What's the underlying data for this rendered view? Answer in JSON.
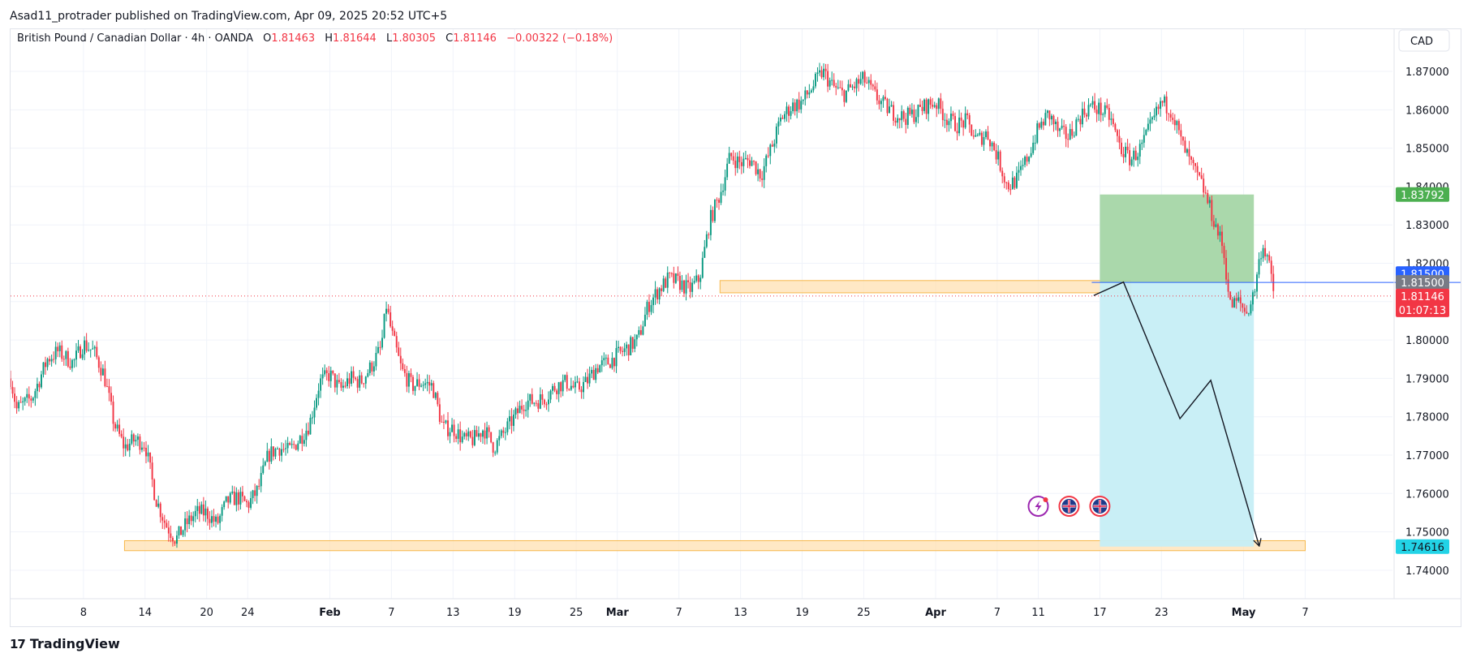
{
  "header": {
    "text": "Asad11_protrader published on TradingView.com, Apr 09, 2025 20:52 UTC+5"
  },
  "footer": {
    "brand": "TradingView",
    "logo_icon": "tradingview-logo-icon"
  },
  "legend": {
    "symbol": "British Pound / Canadian Dollar · 4h · OANDA",
    "o_label": "O",
    "open": "1.81463",
    "h_label": "H",
    "high": "1.81644",
    "l_label": "L",
    "low": "1.80305",
    "c_label": "C",
    "close": "1.81146",
    "change": "−0.00322 (−0.18%)"
  },
  "colors": {
    "up": "#089981",
    "down": "#f23645",
    "grid": "#f0f3fa",
    "text": "#131722",
    "zone_fill": "#ffe0b2",
    "zone_border": "#f7b84b",
    "target_fill": "#a5d6a7",
    "stop_fill": "#c6eef5",
    "entry_blue": "#2962ff",
    "entry_gray": "#787b86",
    "target_label": "#4caf50",
    "stop_label": "#22d3e6",
    "price_red": "#f23645"
  },
  "chart_data": {
    "type": "candlestick",
    "instrument": "GBPCAD",
    "timeframe": "4h",
    "currency": "CAD",
    "ylim": [
      1.733,
      1.881
    ],
    "y_ticks": [
      "1.87000",
      "1.86000",
      "1.85000",
      "1.84000",
      "1.83000",
      "1.82000",
      "1.81000",
      "1.80000",
      "1.79000",
      "1.78000",
      "1.77000",
      "1.76000",
      "1.75000",
      "1.74000"
    ],
    "x_ticks": [
      "8",
      "14",
      "20",
      "24",
      "Feb",
      "7",
      "13",
      "19",
      "25",
      "Mar",
      "7",
      "13",
      "19",
      "25",
      "Apr",
      "7",
      "11",
      "17",
      "23",
      "May",
      "7"
    ],
    "x_tick_days": [
      8,
      14,
      20,
      24,
      32,
      38,
      44,
      50,
      56,
      60,
      66,
      72,
      78,
      84,
      91,
      97,
      101,
      107,
      113,
      121,
      127
    ],
    "bold_ticks": [
      "Feb",
      "Mar",
      "Apr",
      "May"
    ],
    "x_range_days": [
      0.9,
      135.5
    ],
    "price_path": [
      [
        0.9,
        1.79
      ],
      [
        1.5,
        1.782
      ],
      [
        3,
        1.785
      ],
      [
        4.5,
        1.795
      ],
      [
        5.5,
        1.797
      ],
      [
        7,
        1.794
      ],
      [
        8,
        1.799
      ],
      [
        9,
        1.797
      ],
      [
        10,
        1.791
      ],
      [
        11,
        1.778
      ],
      [
        12,
        1.772
      ],
      [
        13,
        1.774
      ],
      [
        14,
        1.773
      ],
      [
        15,
        1.759
      ],
      [
        16,
        1.752
      ],
      [
        17,
        1.748
      ],
      [
        18,
        1.752
      ],
      [
        19,
        1.755
      ],
      [
        20,
        1.755
      ],
      [
        21,
        1.752
      ],
      [
        22,
        1.758
      ],
      [
        23,
        1.759
      ],
      [
        24,
        1.757
      ],
      [
        25,
        1.761
      ],
      [
        26,
        1.77
      ],
      [
        27,
        1.772
      ],
      [
        28,
        1.771
      ],
      [
        29,
        1.774
      ],
      [
        30,
        1.778
      ],
      [
        31,
        1.789
      ],
      [
        32,
        1.791
      ],
      [
        33,
        1.787
      ],
      [
        34,
        1.79
      ],
      [
        35,
        1.789
      ],
      [
        36,
        1.793
      ],
      [
        37,
        1.798
      ],
      [
        37.5,
        1.809
      ],
      [
        38,
        1.802
      ],
      [
        39,
        1.792
      ],
      [
        40,
        1.788
      ],
      [
        41,
        1.789
      ],
      [
        42,
        1.788
      ],
      [
        43,
        1.777
      ],
      [
        44,
        1.777
      ],
      [
        45,
        1.774
      ],
      [
        46,
        1.774
      ],
      [
        47,
        1.777
      ],
      [
        48,
        1.772
      ],
      [
        49,
        1.776
      ],
      [
        50,
        1.78
      ],
      [
        51,
        1.784
      ],
      [
        52,
        1.784
      ],
      [
        53,
        1.785
      ],
      [
        54,
        1.788
      ],
      [
        55,
        1.789
      ],
      [
        56,
        1.787
      ],
      [
        57,
        1.789
      ],
      [
        58,
        1.793
      ],
      [
        59,
        1.794
      ],
      [
        60,
        1.796
      ],
      [
        61,
        1.798
      ],
      [
        62,
        1.8
      ],
      [
        63,
        1.809
      ],
      [
        64,
        1.813
      ],
      [
        65,
        1.816
      ],
      [
        66,
        1.815
      ],
      [
        67,
        1.813
      ],
      [
        68,
        1.816
      ],
      [
        69,
        1.831
      ],
      [
        70,
        1.838
      ],
      [
        71,
        1.848
      ],
      [
        72,
        1.846
      ],
      [
        73,
        1.847
      ],
      [
        74,
        1.843
      ],
      [
        75,
        1.85
      ],
      [
        76,
        1.858
      ],
      [
        77,
        1.861
      ],
      [
        78,
        1.862
      ],
      [
        79,
        1.866
      ],
      [
        80,
        1.87
      ],
      [
        81,
        1.866
      ],
      [
        82,
        1.864
      ],
      [
        83,
        1.866
      ],
      [
        84,
        1.868
      ],
      [
        85,
        1.864
      ],
      [
        86,
        1.861
      ],
      [
        87,
        1.859
      ],
      [
        88,
        1.858
      ],
      [
        89,
        1.859
      ],
      [
        90,
        1.861
      ],
      [
        91,
        1.862
      ],
      [
        92,
        1.858
      ],
      [
        93,
        1.856
      ],
      [
        94,
        1.857
      ],
      [
        95,
        1.852
      ],
      [
        96,
        1.854
      ],
      [
        97,
        1.848
      ],
      [
        98,
        1.84
      ],
      [
        99,
        1.842
      ],
      [
        100,
        1.848
      ],
      [
        101,
        1.855
      ],
      [
        102,
        1.859
      ],
      [
        103,
        1.854
      ],
      [
        104,
        1.853
      ],
      [
        105,
        1.858
      ],
      [
        106,
        1.861
      ],
      [
        107,
        1.86
      ],
      [
        108,
        1.858
      ],
      [
        109,
        1.85
      ],
      [
        110,
        1.847
      ],
      [
        111,
        1.85
      ],
      [
        112,
        1.856
      ],
      [
        113,
        1.862
      ],
      [
        114,
        1.86
      ],
      [
        115,
        1.851
      ],
      [
        116,
        1.845
      ],
      [
        117,
        1.84
      ],
      [
        118,
        1.832
      ],
      [
        119,
        1.824
      ],
      [
        119.7,
        1.809
      ],
      [
        120.5,
        1.81
      ],
      [
        121.3,
        1.807
      ],
      [
        122,
        1.812
      ],
      [
        122.8,
        1.825
      ],
      [
        123.3,
        1.822
      ],
      [
        124,
        1.811
      ]
    ],
    "current_price": 1.81146,
    "countdown": "01:07:13",
    "zones": [
      {
        "from_day": 70,
        "to_day": 110,
        "low": 1.8123,
        "high": 1.8155
      },
      {
        "from_day": 12,
        "to_day": 127,
        "low": 1.7451,
        "high": 1.7477
      }
    ],
    "position": {
      "side": "short",
      "from_day": 107,
      "to_day": 122,
      "entry": 1.815,
      "target": 1.74616,
      "stop": 1.83792,
      "target_label": "1.74616",
      "stop_label": "1.83792",
      "entry_labels": [
        "1.81500",
        "1.81500"
      ]
    },
    "projection": [
      [
        106.4,
        1.8116
      ],
      [
        109.3,
        1.8151
      ],
      [
        114.8,
        1.7795
      ],
      [
        117.8,
        1.7895
      ],
      [
        122.5,
        1.7465
      ]
    ],
    "event_icons": [
      "lightning-icon",
      "uk-flag-icon",
      "uk-flag-icon"
    ],
    "event_day": [
      101,
      104,
      107
    ]
  }
}
